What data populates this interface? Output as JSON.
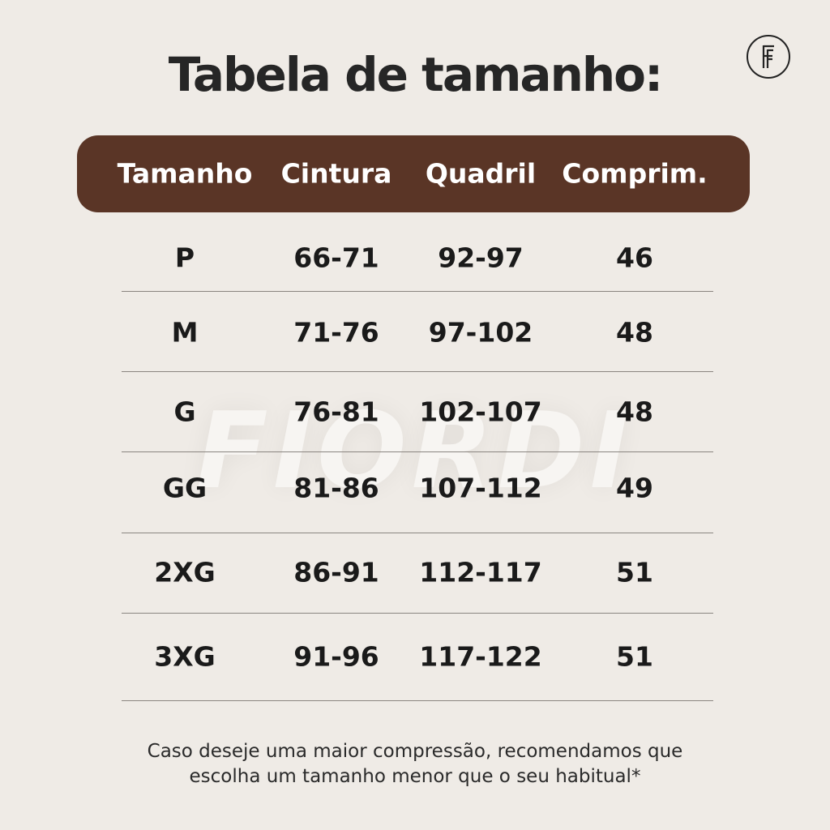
{
  "title": "Tabela de tamanho:",
  "logo_text": "FF",
  "watermark": "FIORDI",
  "colors": {
    "header_bg": "#5a3526",
    "background": "#efebe6"
  },
  "table": {
    "headers": [
      "Tamanho",
      "Cintura",
      "Quadril",
      "Comprim."
    ],
    "rows": [
      [
        "P",
        "66-71",
        "92-97",
        "46"
      ],
      [
        "M",
        "71-76",
        "97-102",
        "48"
      ],
      [
        "G",
        "76-81",
        "102-107",
        "48"
      ],
      [
        "GG",
        "81-86",
        "107-112",
        "49"
      ],
      [
        "2XG",
        "86-91",
        "112-117",
        "51"
      ],
      [
        "3XG",
        "91-96",
        "117-122",
        "51"
      ]
    ]
  },
  "note": [
    "Caso deseje uma maior compressão, recomendamos que",
    "escolha um tamanho menor que o seu habitual*"
  ]
}
